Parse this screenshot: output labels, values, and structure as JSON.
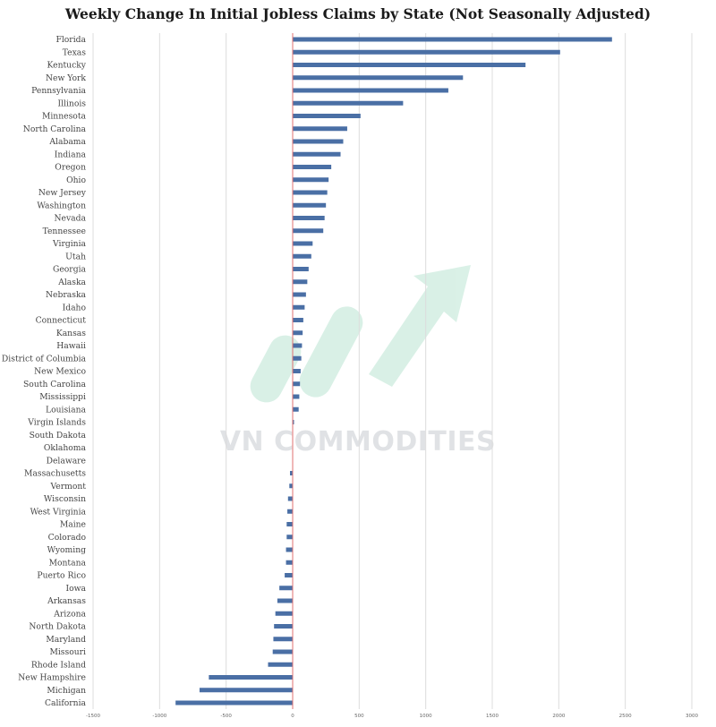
{
  "title": "Weekly Change In Initial Jobless Claims by State (Not Seasonally Adjusted)",
  "watermark": {
    "text": "VN COMMODITIES",
    "colors": [
      "#b5e3cf",
      "#c8ccd0"
    ]
  },
  "chart_data": {
    "type": "bar",
    "orientation": "horizontal",
    "title": "Weekly Change In Initial Jobless Claims by State (Not Seasonally Adjusted)",
    "xlabel": "",
    "ylabel": "",
    "xlim": [
      -1500,
      3000
    ],
    "x_ticks": [
      -1500,
      -1000,
      -500,
      0,
      500,
      1000,
      1500,
      2000,
      2500,
      3000
    ],
    "grid": "vertical",
    "bar_color": "#4a6fa5",
    "zero_line_color": "#e07070",
    "categories": [
      "Florida",
      "Texas",
      "Kentucky",
      "New York",
      "Pennsylvania",
      "Illinois",
      "Minnesota",
      "North Carolina",
      "Alabama",
      "Indiana",
      "Oregon",
      "Ohio",
      "New Jersey",
      "Washington",
      "Nevada",
      "Tennessee",
      "Virginia",
      "Utah",
      "Georgia",
      "Alaska",
      "Nebraska",
      "Idaho",
      "Connecticut",
      "Kansas",
      "Hawaii",
      "District of Columbia",
      "New Mexico",
      "South Carolina",
      "Mississippi",
      "Louisiana",
      "Virgin Islands",
      "South Dakota",
      "Oklahoma",
      "Delaware",
      "Massachusetts",
      "Vermont",
      "Wisconsin",
      "West Virginia",
      "Maine",
      "Colorado",
      "Wyoming",
      "Montana",
      "Puerto Rico",
      "Iowa",
      "Arkansas",
      "Arizona",
      "North Dakota",
      "Maryland",
      "Missouri",
      "Rhode Island",
      "New Hampshire",
      "Michigan",
      "California"
    ],
    "values": [
      2400,
      2010,
      1750,
      1280,
      1170,
      830,
      510,
      410,
      380,
      360,
      290,
      270,
      260,
      250,
      240,
      230,
      150,
      140,
      120,
      110,
      100,
      90,
      80,
      75,
      70,
      65,
      60,
      55,
      50,
      45,
      10,
      0,
      0,
      0,
      -20,
      -25,
      -35,
      -40,
      -45,
      -45,
      -50,
      -50,
      -60,
      -100,
      -115,
      -130,
      -140,
      -145,
      -150,
      -185,
      -630,
      -700,
      -880
    ]
  }
}
